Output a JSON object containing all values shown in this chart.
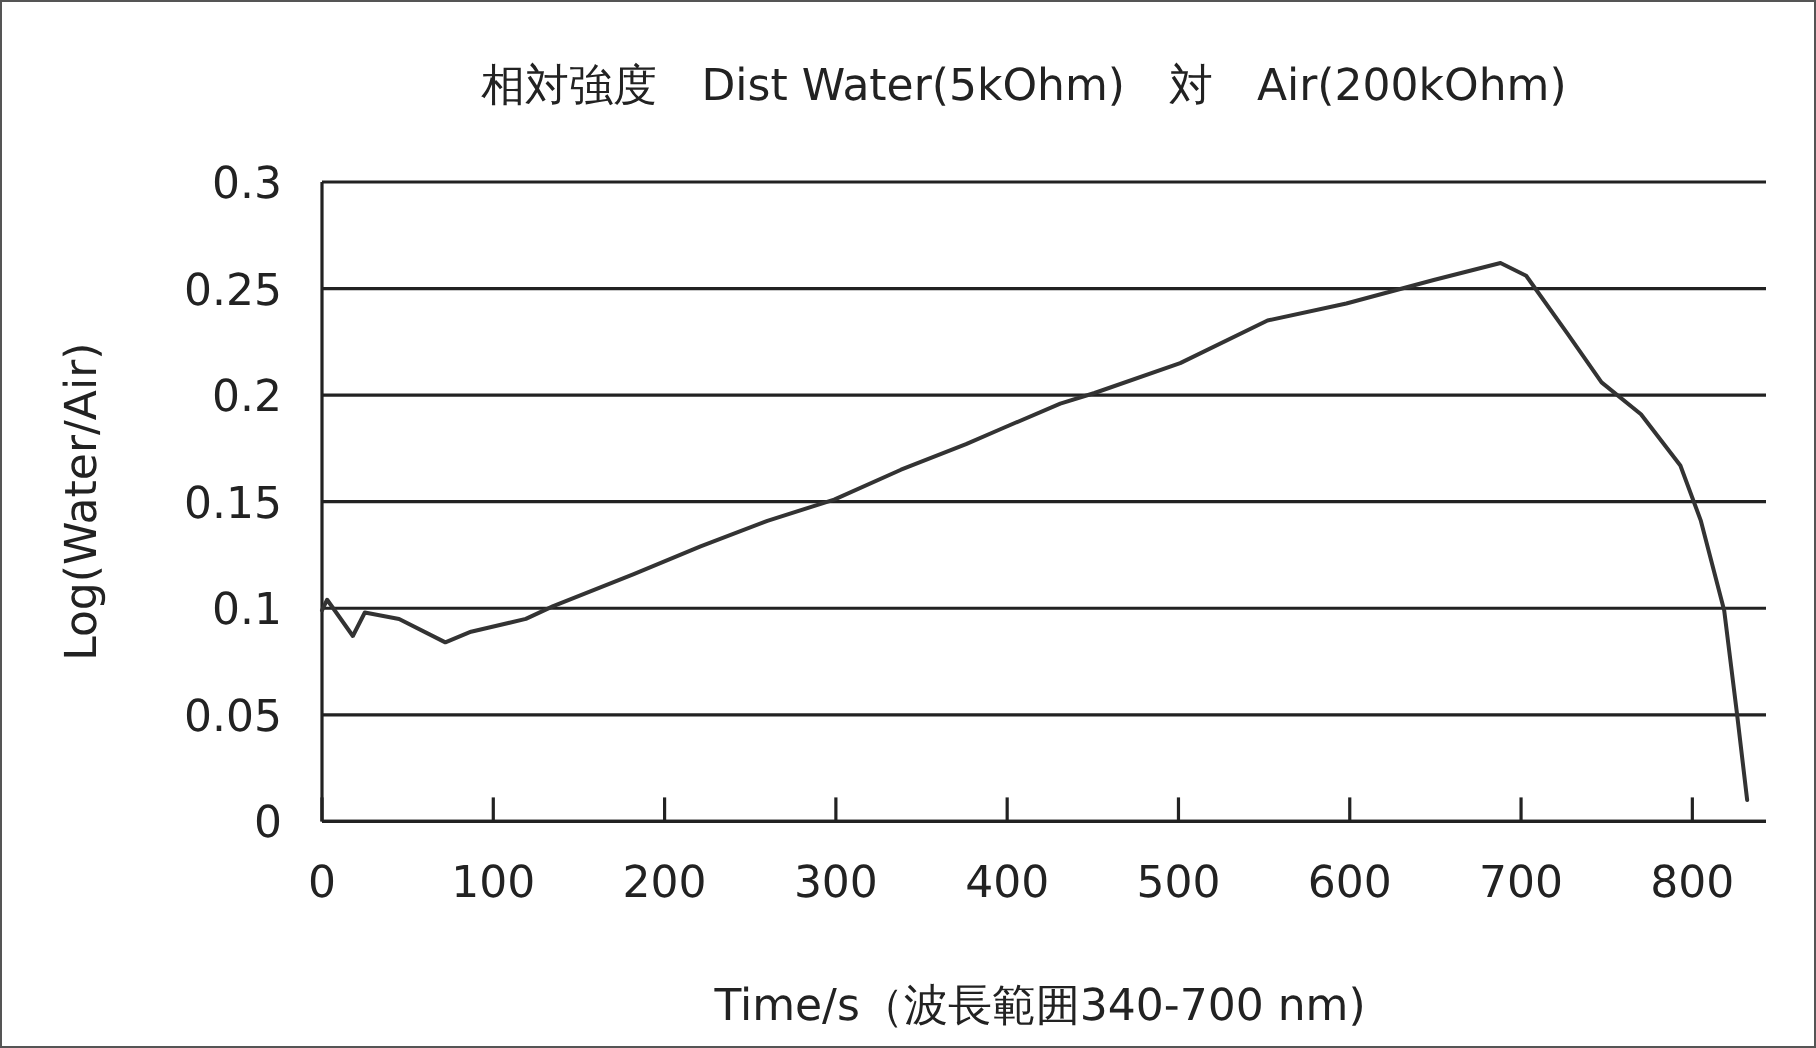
{
  "chart_data": {
    "type": "line",
    "title": "相対強度　Dist Water(5kOhm)　対　Air(200kOhm)",
    "xlabel": "Time/s（波長範囲340-700 nm)",
    "ylabel": "Log(Water/Air)",
    "x": [
      0,
      3,
      18,
      25,
      45,
      72,
      87,
      119,
      135,
      182,
      221,
      260,
      299,
      338,
      376,
      396,
      431,
      451,
      501,
      552,
      598,
      649,
      688,
      703,
      727,
      747,
      770,
      793,
      805,
      818.6,
      826,
      832
    ],
    "series": [
      {
        "color": "#333333",
        "values": [
          0.099,
          0.104,
          0.087,
          0.098,
          0.095,
          0.084,
          0.089,
          0.095,
          0.101,
          0.116,
          0.129,
          0.141,
          0.151,
          0.165,
          0.177,
          0.184,
          0.196,
          0.201,
          0.215,
          0.235,
          0.243,
          0.254,
          0.262,
          0.256,
          0.229,
          0.206,
          0.191,
          0.167,
          0.141,
          0.099,
          0.051,
          0.01
        ]
      }
    ],
    "xlim": [
      0,
      843
    ],
    "ylim": [
      0,
      0.3
    ],
    "xticks": [
      0,
      100,
      200,
      300,
      400,
      500,
      600,
      700,
      800
    ],
    "yticks": [
      0,
      0.05,
      0.1,
      0.15,
      0.2,
      0.25,
      0.3
    ],
    "grid": "y",
    "marker": "none",
    "line_style": "solid"
  }
}
